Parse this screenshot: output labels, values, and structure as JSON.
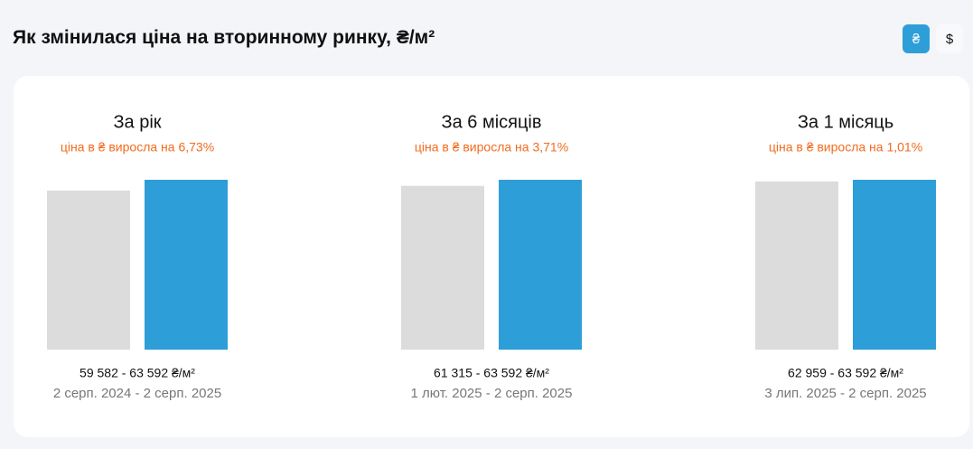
{
  "header": {
    "title": "Як змінилася ціна на вторинному ринку, ₴/м²",
    "currency_buttons": [
      "₴",
      "$"
    ]
  },
  "panels": [
    {
      "title": "За рік",
      "change": "ціна в ₴ виросла на 6,73%",
      "values": [
        59582,
        63592
      ],
      "range": "59 582 - 63 592 ₴/м²",
      "period": "2 серп. 2024 - 2 серп. 2025"
    },
    {
      "title": "За 6 місяців",
      "change": "ціна в ₴ виросла на 3,71%",
      "values": [
        61315,
        63592
      ],
      "range": "61 315 - 63 592 ₴/м²",
      "period": "1 лют. 2025 - 2 серп. 2025"
    },
    {
      "title": "За 1 місяць",
      "change": "ціна в ₴ виросла на 1,01%",
      "values": [
        62959,
        63592
      ],
      "range": "62 959 - 63 592 ₴/м²",
      "period": "3 лип. 2025 - 2 серп. 2025"
    }
  ]
}
